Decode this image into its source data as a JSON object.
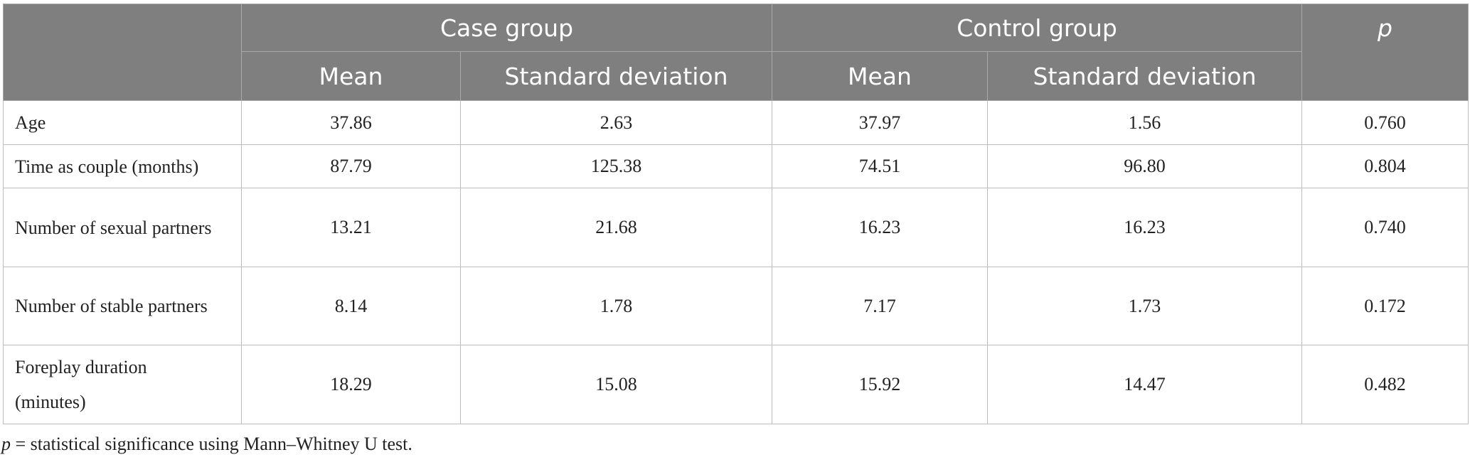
{
  "header": {
    "groups": [
      "Case group",
      "Control group"
    ],
    "p_label": "p",
    "subcolumns": [
      "Mean",
      "Standard deviation",
      "Mean",
      "Standard deviation"
    ]
  },
  "table": {
    "rows": [
      [
        "Age",
        "37.86",
        "2.63",
        "37.97",
        "1.56",
        "0.760"
      ],
      [
        "Time as couple (months)",
        "87.79",
        "125.38",
        "74.51",
        "96.80",
        "0.804"
      ],
      [
        "Number of sexual partners",
        "13.21",
        "21.68",
        "16.23",
        "16.23",
        "0.740"
      ],
      [
        "Number of stable partners",
        "8.14",
        "1.78",
        "7.17",
        "1.73",
        "0.172"
      ],
      [
        "Foreplay duration (minutes)",
        "18.29",
        "15.08",
        "15.92",
        "14.47",
        "0.482"
      ]
    ]
  },
  "footnote": {
    "symbol": "p",
    "text": "= statistical significance using Mann–Whitney U test."
  }
}
